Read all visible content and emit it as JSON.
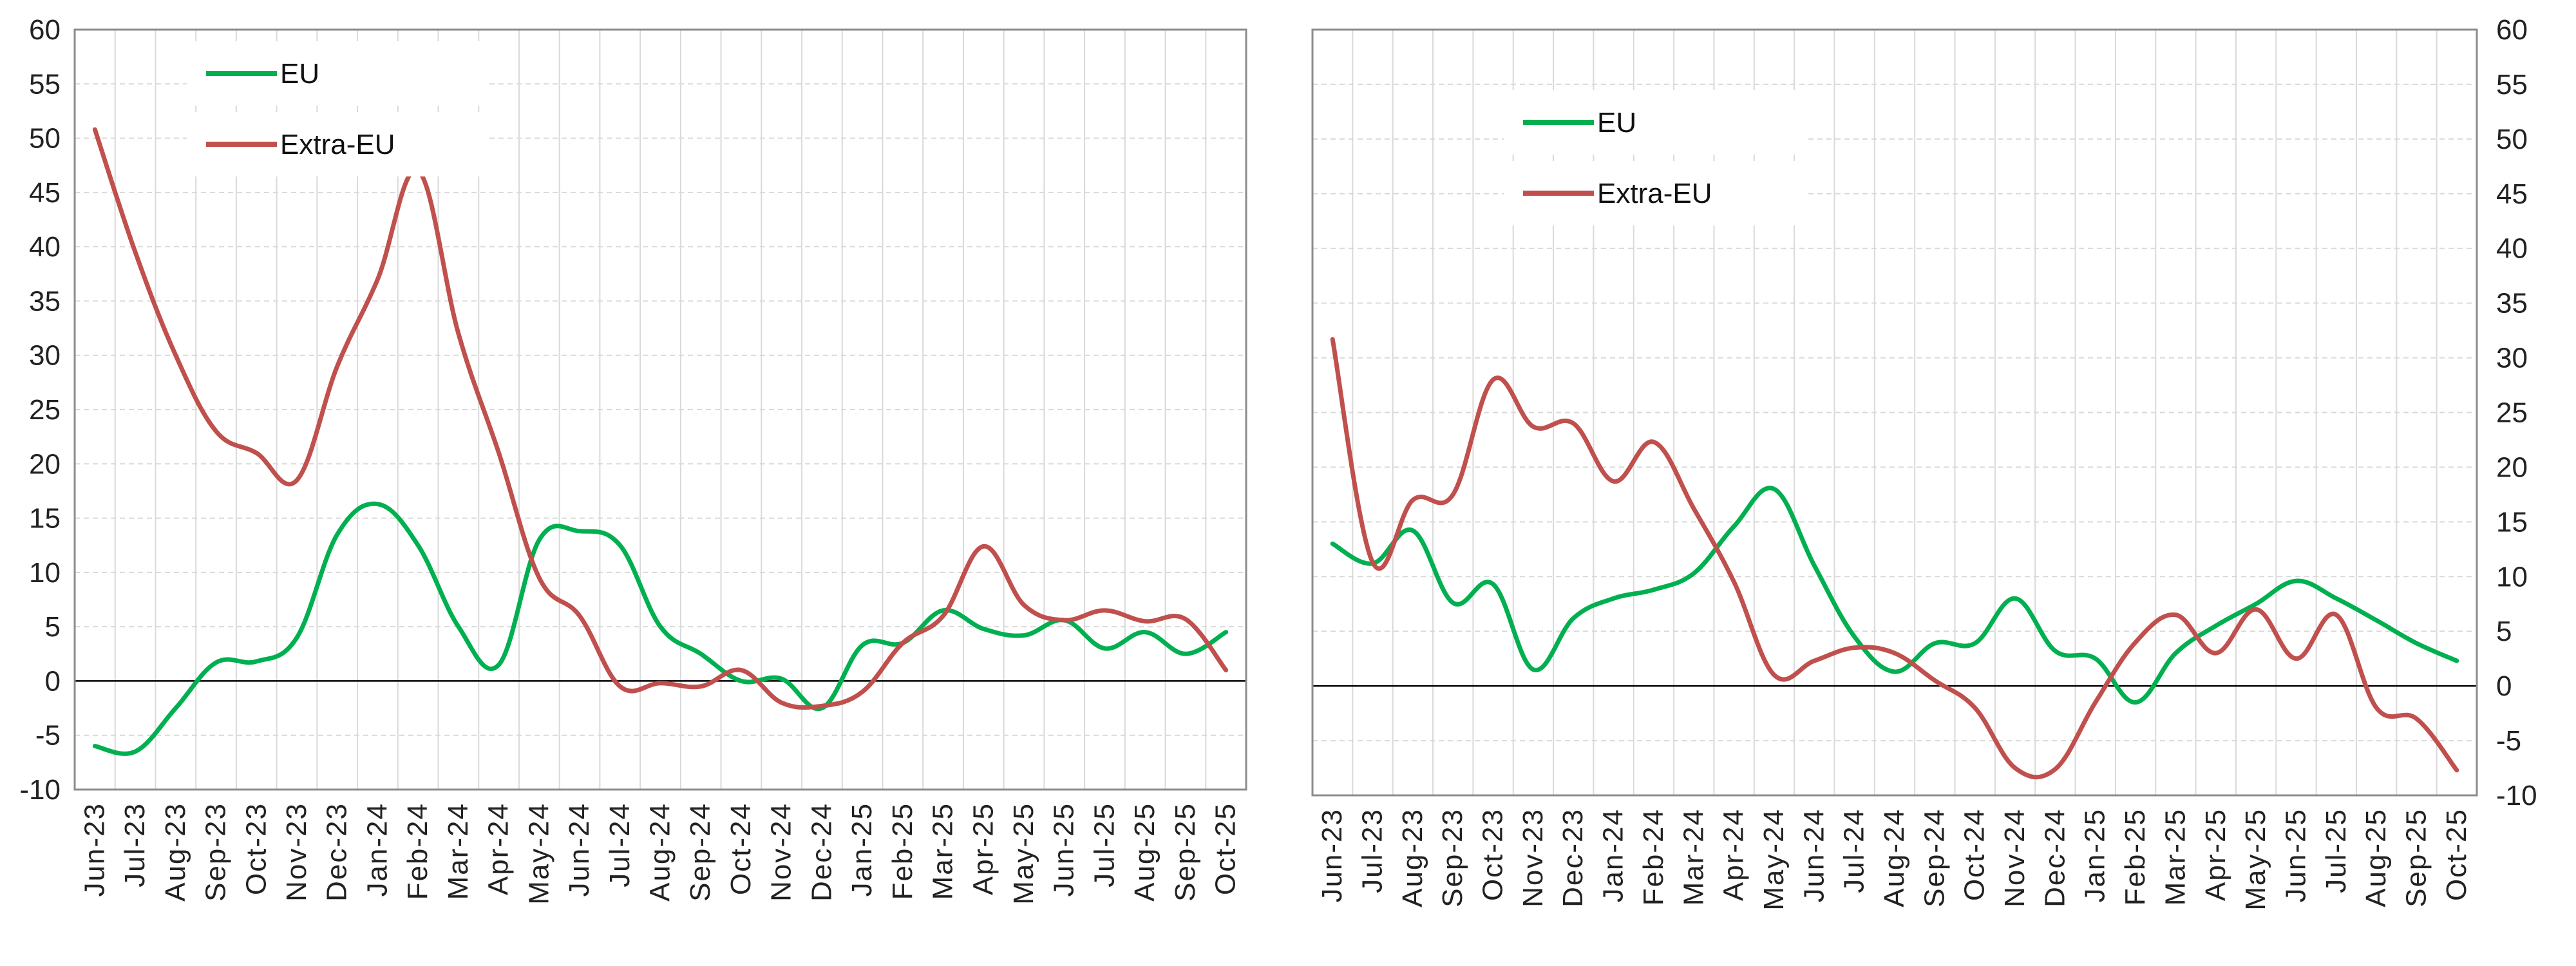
{
  "chart_data": [
    {
      "type": "line",
      "title": "",
      "xlabel": "",
      "ylabel": "",
      "y_axis_side": "left",
      "ylim": [
        -10,
        60
      ],
      "yticks": [
        -10,
        -5,
        0,
        5,
        10,
        15,
        20,
        25,
        30,
        35,
        40,
        45,
        50,
        55,
        60
      ],
      "grid": true,
      "legend_position": "top-left",
      "x": [
        "Jun-23",
        "Jul-23",
        "Aug-23",
        "Sep-23",
        "Oct-23",
        "Nov-23",
        "Dec-23",
        "Jan-24",
        "Feb-24",
        "Mar-24",
        "Apr-24",
        "May-24",
        "Jun-24",
        "Jul-24",
        "Aug-24",
        "Sep-24",
        "Oct-24",
        "Nov-24",
        "Dec-24",
        "Jan-25",
        "Feb-25",
        "Mar-25",
        "Apr-25",
        "May-25",
        "Jun-25",
        "Jul-25",
        "Aug-25",
        "Sep-25",
        "Oct-25"
      ],
      "series": [
        {
          "name": "EU",
          "color": "#00b050",
          "values": [
            -6,
            -6.5,
            -2.5,
            1.7,
            1.8,
            4,
            13.5,
            16.3,
            12.5,
            5,
            1.5,
            13,
            13.8,
            12.5,
            5,
            2.5,
            0,
            0.2,
            -2.5,
            3.3,
            3.5,
            6.5,
            4.8,
            4.2,
            5.6,
            3,
            4.5,
            2.5,
            4.5
          ]
        },
        {
          "name": "Extra-EU",
          "color": "#c0504d",
          "values": [
            50.8,
            39.5,
            30,
            23,
            21,
            18.5,
            29,
            37,
            47,
            32,
            21,
            9.5,
            6,
            -0.5,
            -0.2,
            -0.5,
            1,
            -2,
            -2.3,
            -1,
            3.5,
            6,
            12.4,
            7,
            5.6,
            6.5,
            5.5,
            5.7,
            1
          ]
        }
      ]
    },
    {
      "type": "line",
      "title": "",
      "xlabel": "",
      "ylabel": "",
      "y_axis_side": "right",
      "ylim": [
        -10,
        60
      ],
      "yticks": [
        -10,
        -5,
        0,
        5,
        10,
        15,
        20,
        25,
        30,
        35,
        40,
        45,
        50,
        55,
        60
      ],
      "grid": true,
      "legend_position": "top-left",
      "x": [
        "Jun-23",
        "Jul-23",
        "Aug-23",
        "Sep-23",
        "Oct-23",
        "Nov-23",
        "Dec-23",
        "Jan-24",
        "Feb-24",
        "Mar-24",
        "Apr-24",
        "May-24",
        "Jun-24",
        "Jul-24",
        "Aug-24",
        "Sep-24",
        "Oct-24",
        "Nov-24",
        "Dec-24",
        "Jan-25",
        "Feb-25",
        "Mar-25",
        "Apr-25",
        "May-25",
        "Jun-25",
        "Jul-25",
        "Aug-25",
        "Sep-25",
        "Oct-25"
      ],
      "series": [
        {
          "name": "EU",
          "color": "#00b050",
          "values": [
            13,
            11.2,
            14.2,
            7.6,
            9.3,
            1.5,
            6.2,
            8,
            8.8,
            10.3,
            14.6,
            18,
            11,
            4.5,
            1.3,
            3.9,
            3.9,
            8,
            3.2,
            2.5,
            -1.5,
            3,
            5.5,
            7.5,
            9.6,
            8,
            6,
            3.9,
            2.3
          ]
        },
        {
          "name": "Extra-EU",
          "color": "#c0504d",
          "values": [
            31.7,
            11.3,
            17,
            17.5,
            28,
            23.7,
            24,
            18.7,
            22.3,
            16.2,
            9.5,
            1,
            2.3,
            3.5,
            3,
            0.5,
            -2,
            -7.5,
            -7.6,
            -1.5,
            4,
            6.5,
            3,
            7,
            2.5,
            6.5,
            -2,
            -3,
            -7.7
          ]
        }
      ]
    }
  ]
}
